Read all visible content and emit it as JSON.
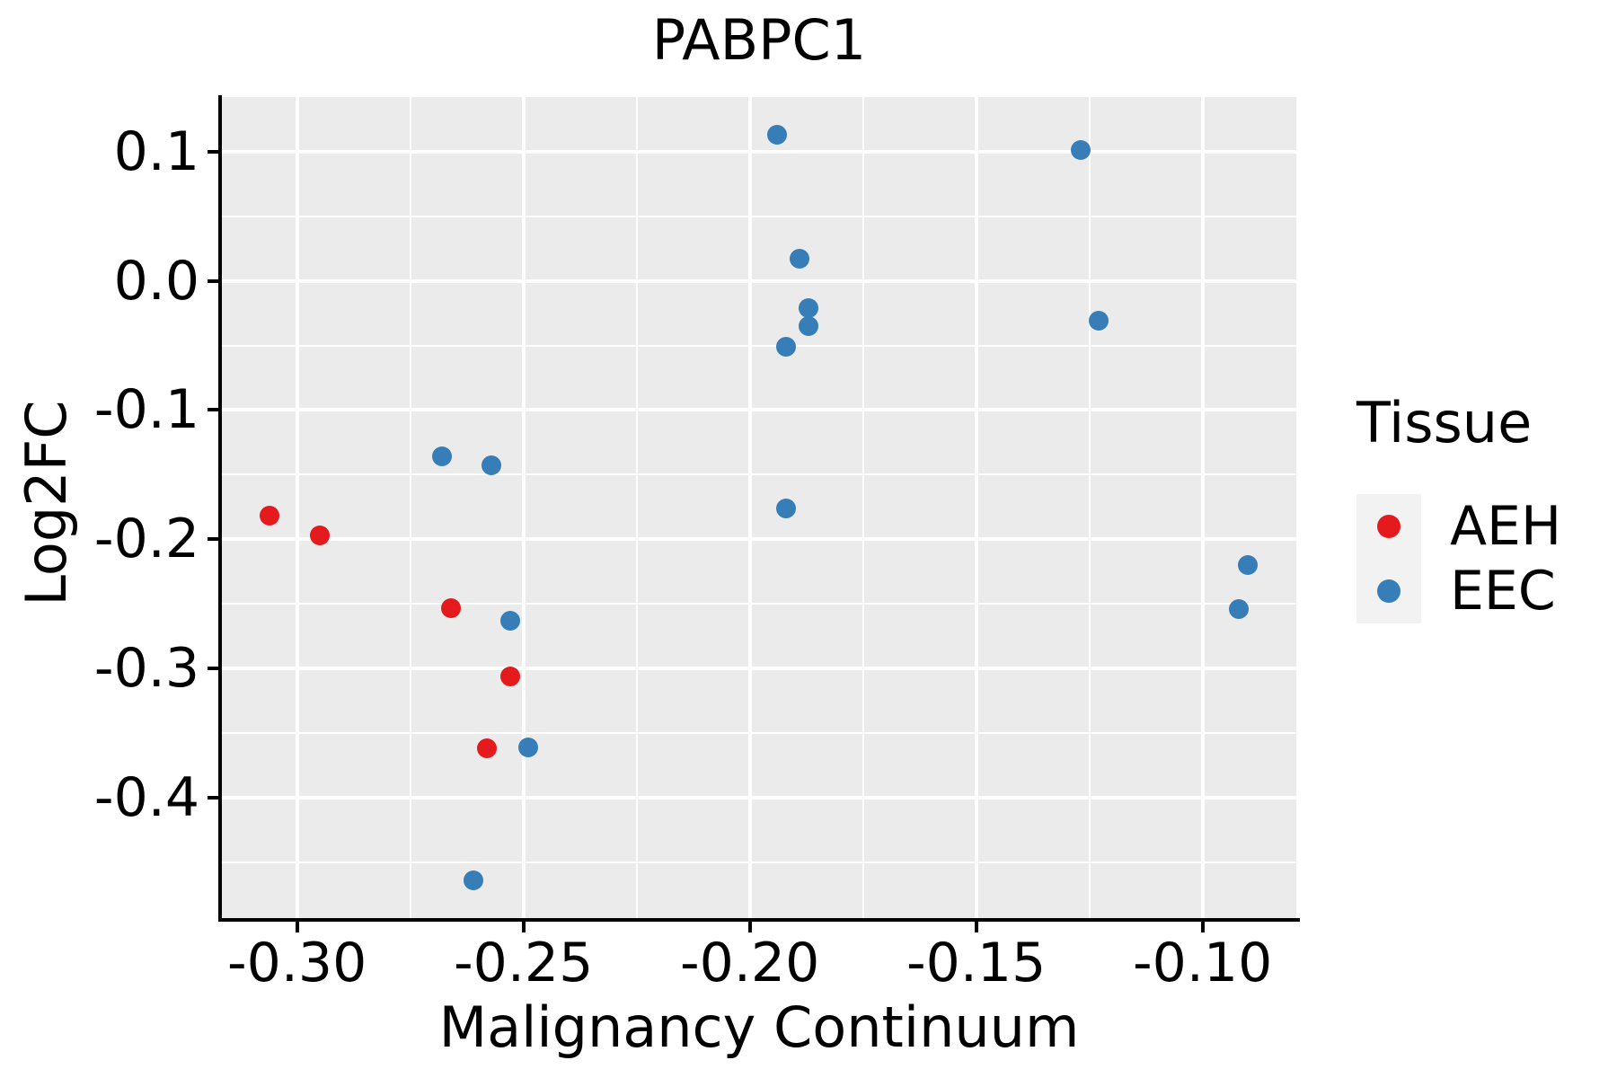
{
  "chart": {
    "title": "PABPC1",
    "xlabel": "Malignancy Continuum",
    "ylabel": "Log2FC"
  },
  "legend": {
    "title": "Tissue",
    "items": [
      {
        "label": "AEH",
        "color": "#E41A1C"
      },
      {
        "label": "EEC",
        "color": "#377EB8"
      }
    ]
  },
  "colors": {
    "panel_background": "#EBEBEB",
    "gridline": "#FFFFFF",
    "axis": "#000000",
    "legend_key_background": "#F2F2F2",
    "aeh_red": "#E41A1C",
    "eec_blue": "#377EB8"
  },
  "chart_data": {
    "type": "scatter",
    "title": "PABPC1",
    "xlabel": "Malignancy Continuum",
    "ylabel": "Log2FC",
    "xlim": [
      -0.3166,
      -0.0793
    ],
    "ylim": [
      -0.4932,
      0.1423
    ],
    "grid": true,
    "legend_position": "right",
    "x_ticks": [
      -0.3,
      -0.25,
      -0.2,
      -0.15,
      -0.1
    ],
    "x_tick_labels": [
      "-0.30",
      "-0.25",
      "-0.20",
      "-0.15",
      "-0.10"
    ],
    "x_minor_ticks": [
      -0.325,
      -0.275,
      -0.225,
      -0.175,
      -0.125
    ],
    "y_ticks": [
      0.1,
      0.0,
      -0.1,
      -0.2,
      -0.3,
      -0.4
    ],
    "y_tick_labels": [
      "0.1",
      "0.0",
      "-0.1",
      "-0.2",
      "-0.3",
      "-0.4"
    ],
    "y_minor_ticks": [
      0.05,
      -0.05,
      -0.15,
      -0.25,
      -0.35,
      -0.45
    ],
    "series": [
      {
        "name": "EEC",
        "color": "#377EB8",
        "points": [
          [
            -0.268,
            -0.136
          ],
          [
            -0.257,
            -0.143
          ],
          [
            -0.253,
            -0.263
          ],
          [
            -0.249,
            -0.361
          ],
          [
            -0.261,
            -0.464
          ],
          [
            -0.194,
            0.113
          ],
          [
            -0.189,
            0.017
          ],
          [
            -0.187,
            -0.021
          ],
          [
            -0.187,
            -0.035
          ],
          [
            -0.192,
            -0.051
          ],
          [
            -0.192,
            -0.176
          ],
          [
            -0.127,
            0.101
          ],
          [
            -0.123,
            -0.031
          ],
          [
            -0.09,
            -0.22
          ],
          [
            -0.092,
            -0.254
          ]
        ]
      },
      {
        "name": "AEH",
        "color": "#E41A1C",
        "points": [
          [
            -0.306,
            -0.182
          ],
          [
            -0.295,
            -0.197
          ],
          [
            -0.266,
            -0.253
          ],
          [
            -0.253,
            -0.306
          ],
          [
            -0.258,
            -0.362
          ]
        ]
      }
    ]
  }
}
